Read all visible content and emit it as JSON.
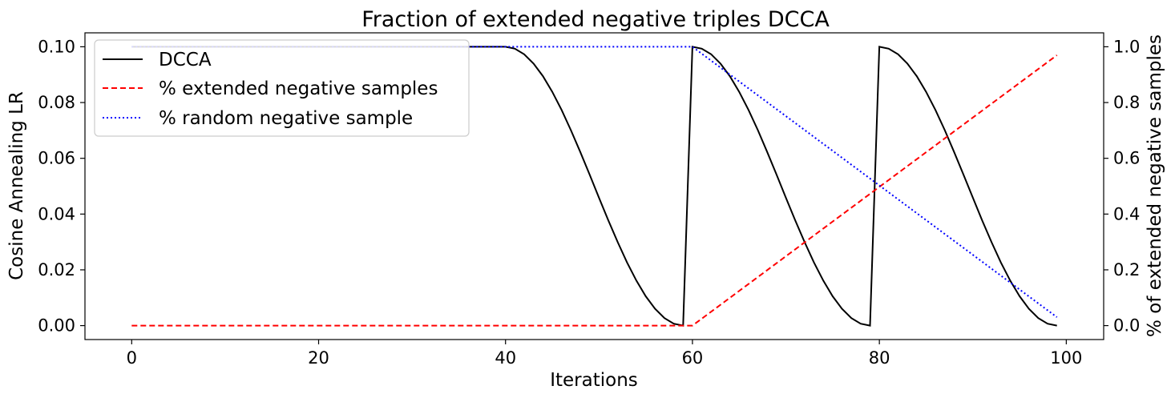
{
  "chart_data": {
    "type": "line",
    "title": "Fraction of extended negative triples DCCA",
    "xlabel": "Iterations",
    "ylabel_left": "Cosine Annealing LR",
    "ylabel_right": "% of extended negative samples",
    "xlim": [
      -5,
      104
    ],
    "ylim_left": [
      -0.005,
      0.105
    ],
    "ylim_right": [
      -0.05,
      1.05
    ],
    "xticks": [
      0,
      20,
      40,
      60,
      80,
      100
    ],
    "yticks_left": [
      "0.00",
      "0.02",
      "0.04",
      "0.06",
      "0.08",
      "0.10"
    ],
    "yticks_right": [
      "0.0",
      "0.2",
      "0.4",
      "0.6",
      "0.8",
      "1.0"
    ],
    "legend_position": "upper-left",
    "grid": false,
    "series": [
      {
        "name": "DCCA",
        "axis": "left",
        "color": "#000000",
        "style": "solid",
        "schedule": {
          "flat_until": 40,
          "max_lr": 0.1,
          "segments": [
            [
              40,
              59
            ],
            [
              60,
              79
            ],
            [
              80,
              99
            ]
          ]
        }
      },
      {
        "name": "% extended negative samples",
        "axis": "right",
        "color": "#ff0000",
        "style": "dashed",
        "x": [
          0,
          60,
          99
        ],
        "y": [
          0.0,
          0.0,
          0.97
        ]
      },
      {
        "name": "% random negative sample",
        "axis": "right",
        "color": "#0000ff",
        "style": "dotted",
        "x": [
          0,
          60,
          99
        ],
        "y": [
          1.0,
          1.0,
          0.03
        ]
      }
    ]
  }
}
